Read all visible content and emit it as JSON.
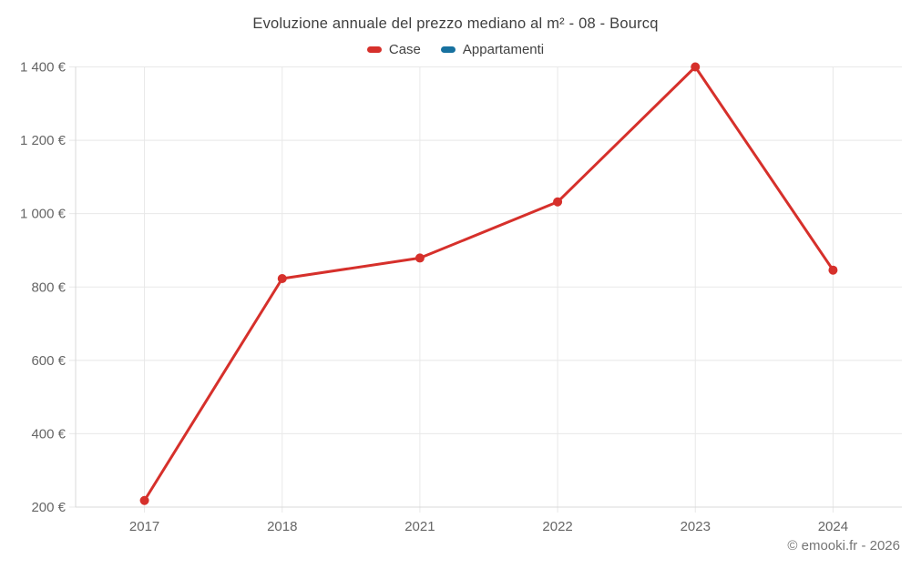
{
  "chart": {
    "title": "Evoluzione annuale del prezzo mediano al m² - 08 - Bourcq"
  },
  "legend": {
    "items": [
      {
        "label": "Case",
        "color": "#d6302b"
      },
      {
        "label": "Appartamenti",
        "color": "#17719f"
      }
    ]
  },
  "footer": {
    "credit": "© emooki.fr - 2026"
  },
  "colors": {
    "grid": "#e8e8e8",
    "axis": "#d9d9d9",
    "tick_label": "#666666",
    "title": "#3f3f3f",
    "footer": "#757575",
    "background": "#ffffff"
  },
  "chart_data": {
    "type": "line",
    "title": "Evoluzione annuale del prezzo mediano al m² - 08 - Bourcq",
    "categories": [
      "2017",
      "2018",
      "2021",
      "2022",
      "2023",
      "2024"
    ],
    "series": [
      {
        "name": "Case",
        "color": "#d6302b",
        "values": [
          218,
          823,
          879,
          1032,
          1400,
          846
        ]
      },
      {
        "name": "Appartamenti",
        "color": "#17719f",
        "values": []
      }
    ],
    "xlabel": "",
    "ylabel": "",
    "ylim": [
      200,
      1400
    ],
    "ytick_step": 200,
    "ytick_suffix": " €",
    "grid": true,
    "legend_position": "top",
    "marker_radius": 5,
    "line_width": 3
  }
}
